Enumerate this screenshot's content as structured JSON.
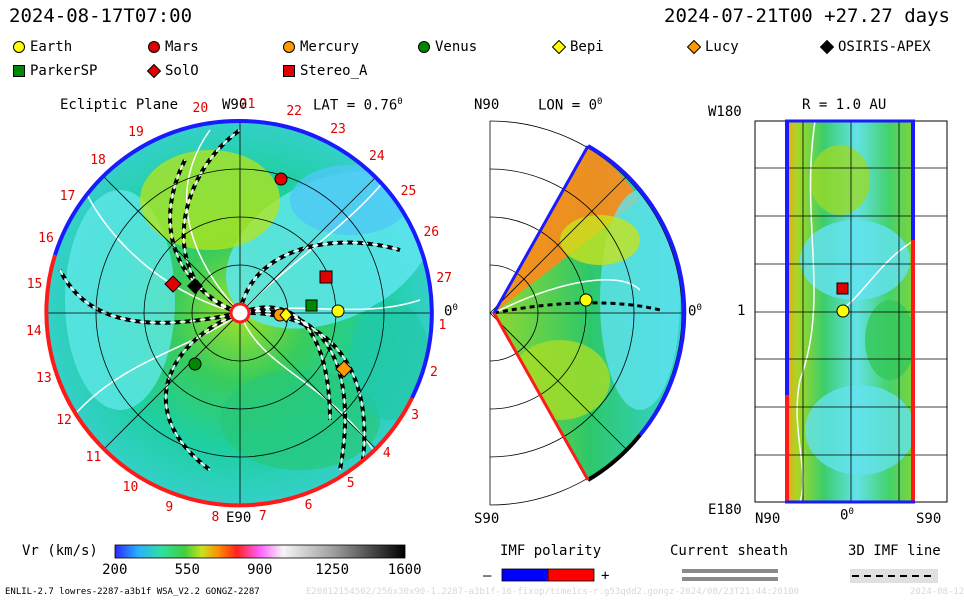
{
  "header": {
    "date_left": "2024-08-17T07:00",
    "date_right": "2024-07-21T00 +27.27 days"
  },
  "legend": [
    {
      "name": "Earth",
      "shape": "circle",
      "color": "#ffff00"
    },
    {
      "name": "Mars",
      "shape": "circle",
      "color": "#e00000"
    },
    {
      "name": "Mercury",
      "shape": "circle",
      "color": "#ff9900"
    },
    {
      "name": "Venus",
      "shape": "circle",
      "color": "#008800"
    },
    {
      "name": "Bepi",
      "shape": "diamond",
      "color": "#ffff00"
    },
    {
      "name": "Lucy",
      "shape": "diamond",
      "color": "#ff9900"
    },
    {
      "name": "OSIRIS-APEX",
      "shape": "diamond",
      "color": "#000000"
    },
    {
      "name": "ParkerSP",
      "shape": "square",
      "color": "#008800"
    },
    {
      "name": "SolO",
      "shape": "diamond",
      "color": "#e00000"
    },
    {
      "name": "Stereo_A",
      "shape": "square",
      "color": "#e00000"
    }
  ],
  "panels": {
    "ecliptic": {
      "title": "Ecliptic Plane",
      "lat_label": "LAT = 0.76",
      "lat_sup": "0",
      "top_label": "W90",
      "bottom_label": "E90",
      "right_label": "0",
      "right_sup": "0",
      "carrington_days": [
        "20",
        "21",
        "22",
        "23",
        "24",
        "25",
        "26",
        "27",
        "1",
        "2",
        "3",
        "4",
        "5",
        "6",
        "7",
        "8",
        "9",
        "10",
        "11",
        "12",
        "13",
        "14",
        "15",
        "16",
        "17",
        "18",
        "19"
      ]
    },
    "meridional": {
      "lon_label": "LON = 0",
      "lon_sup": "0",
      "top_label": "N90",
      "bottom_label": "S90",
      "right_label": "0",
      "right_sup": "0"
    },
    "synoptic": {
      "r_label": "R = 1.0 AU",
      "top_left": "W180",
      "mid_left": "1",
      "bottom_left": "E180",
      "x_left": "N90",
      "x_mid": "0",
      "x_mid_sup": "0",
      "x_right": "S90"
    }
  },
  "colorbar": {
    "label": "Vr (km/s)",
    "ticks": [
      "200",
      "550",
      "900",
      "1250",
      "1600"
    ],
    "min": 200,
    "max": 1600
  },
  "imf": {
    "title": "IMF polarity",
    "minus": "–",
    "plus": "+",
    "neg_color": "#0000ff",
    "pos_color": "#ff0000"
  },
  "current_sheath": {
    "title": "Current sheath"
  },
  "imf_line": {
    "title": "3D IMF line"
  },
  "footer": {
    "model": "ENLIL-2.7 lowres-2287-a3b1f WSA_V2.2 GONGZ-2287",
    "run_info": "E20812154502/256x30x90-1.2287-a3b1f-16-fixop/time1cs-r.g53qdd2.gongz-2024/08/23T21:44:20100",
    "stamp": "2024-08-12"
  },
  "chart_data": [
    {
      "type": "heatmap",
      "title": "Ecliptic Plane",
      "variable": "Vr (km/s)",
      "value_range": [
        200,
        1600
      ],
      "annotations": [
        "W90",
        "E90",
        "LAT = 0.76°",
        "0°"
      ],
      "objects": [
        "Earth",
        "Mars",
        "Mercury",
        "Venus",
        "Bepi",
        "Lucy",
        "OSIRIS-APEX",
        "ParkerSP",
        "SolO",
        "Stereo_A"
      ]
    },
    {
      "type": "heatmap",
      "title": "LON = 0°",
      "variable": "Vr (km/s)",
      "value_range": [
        200,
        1600
      ],
      "axis": [
        "N90",
        "S90",
        "0°"
      ],
      "objects": [
        "Earth"
      ]
    },
    {
      "type": "heatmap",
      "title": "R = 1.0 AU",
      "variable": "Vr (km/s)",
      "value_range": [
        200,
        1600
      ],
      "ylabels": [
        "W180",
        "1",
        "E180"
      ],
      "xlabels": [
        "N90",
        "0°",
        "S90"
      ],
      "objects": [
        "Earth",
        "Stereo_A"
      ]
    }
  ]
}
